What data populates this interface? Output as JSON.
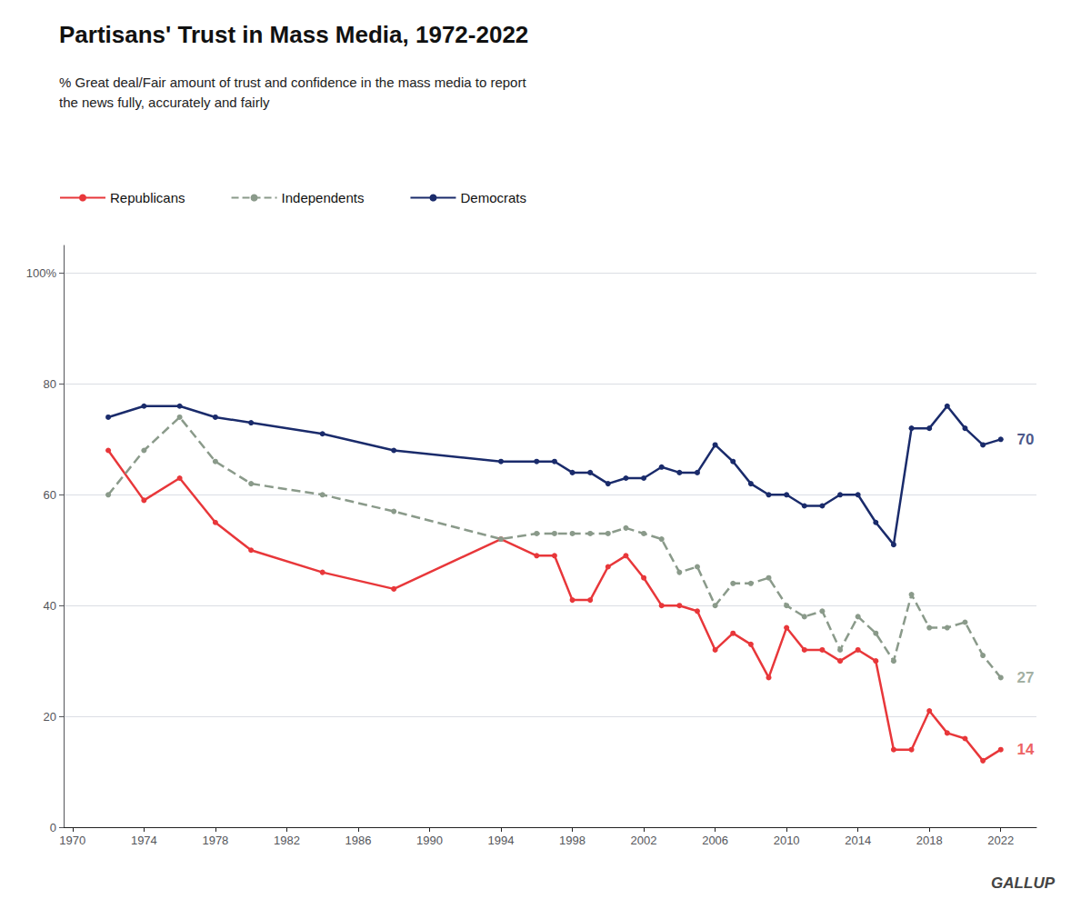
{
  "chart_data": {
    "type": "line",
    "title": "Partisans' Trust in Mass Media, 1972-2022",
    "subtitle": [
      "% Great deal/Fair amount of trust and confidence in the mass media to report",
      "the news fully, accurately and fairly"
    ],
    "x": [
      1972,
      1974,
      1976,
      1978,
      1980,
      1984,
      1988,
      1994,
      1996,
      1997,
      1998,
      1999,
      2000,
      2001,
      2002,
      2003,
      2004,
      2005,
      2006,
      2007,
      2008,
      2009,
      2010,
      2011,
      2012,
      2013,
      2014,
      2015,
      2016,
      2017,
      2018,
      2019,
      2020,
      2021,
      2022
    ],
    "series": [
      {
        "name": "Republicans",
        "color": "#e8373a",
        "line_style": "solid",
        "marker": "circle",
        "values": [
          68,
          59,
          63,
          55,
          50,
          46,
          43,
          52,
          49,
          49,
          41,
          41,
          47,
          49,
          45,
          40,
          40,
          39,
          32,
          35,
          33,
          27,
          36,
          32,
          32,
          30,
          32,
          30,
          14,
          14,
          21,
          17,
          16,
          12,
          14
        ]
      },
      {
        "name": "Independents",
        "color": "#8a9a8a",
        "line_style": "dashed",
        "marker": "circle",
        "values": [
          60,
          68,
          74,
          66,
          62,
          60,
          57,
          52,
          53,
          53,
          53,
          53,
          53,
          54,
          53,
          52,
          46,
          47,
          40,
          44,
          44,
          45,
          40,
          38,
          39,
          32,
          38,
          35,
          30,
          42,
          36,
          36,
          37,
          31,
          27
        ]
      },
      {
        "name": "Democrats",
        "color": "#1a2b6b",
        "line_style": "solid",
        "marker": "circle",
        "values": [
          74,
          76,
          76,
          74,
          73,
          71,
          68,
          66,
          66,
          66,
          64,
          64,
          62,
          63,
          63,
          65,
          64,
          64,
          69,
          66,
          62,
          60,
          60,
          58,
          58,
          60,
          60,
          55,
          51,
          72,
          72,
          76,
          72,
          69,
          70
        ]
      }
    ],
    "xlim": [
      1969.5,
      2024
    ],
    "xticks": [
      1970,
      1974,
      1978,
      1982,
      1986,
      1990,
      1994,
      1998,
      2002,
      2006,
      2010,
      2014,
      2018,
      2022
    ],
    "ylim": [
      0,
      105
    ],
    "yticks": [
      0,
      20,
      40,
      60,
      80,
      {
        "value": 100,
        "label": "100%"
      }
    ],
    "grid": true,
    "legend": "top-left",
    "annotations": [
      {
        "text": "70",
        "x": 2022.8,
        "y": 70,
        "series": "Democrats"
      },
      {
        "text": "27",
        "x": 2022.8,
        "y": 27,
        "series": "Independents"
      },
      {
        "text": "14",
        "x": 2022.8,
        "y": 14,
        "series": "Republicans"
      },
      {
        "text": "GALLUP"
      }
    ]
  }
}
